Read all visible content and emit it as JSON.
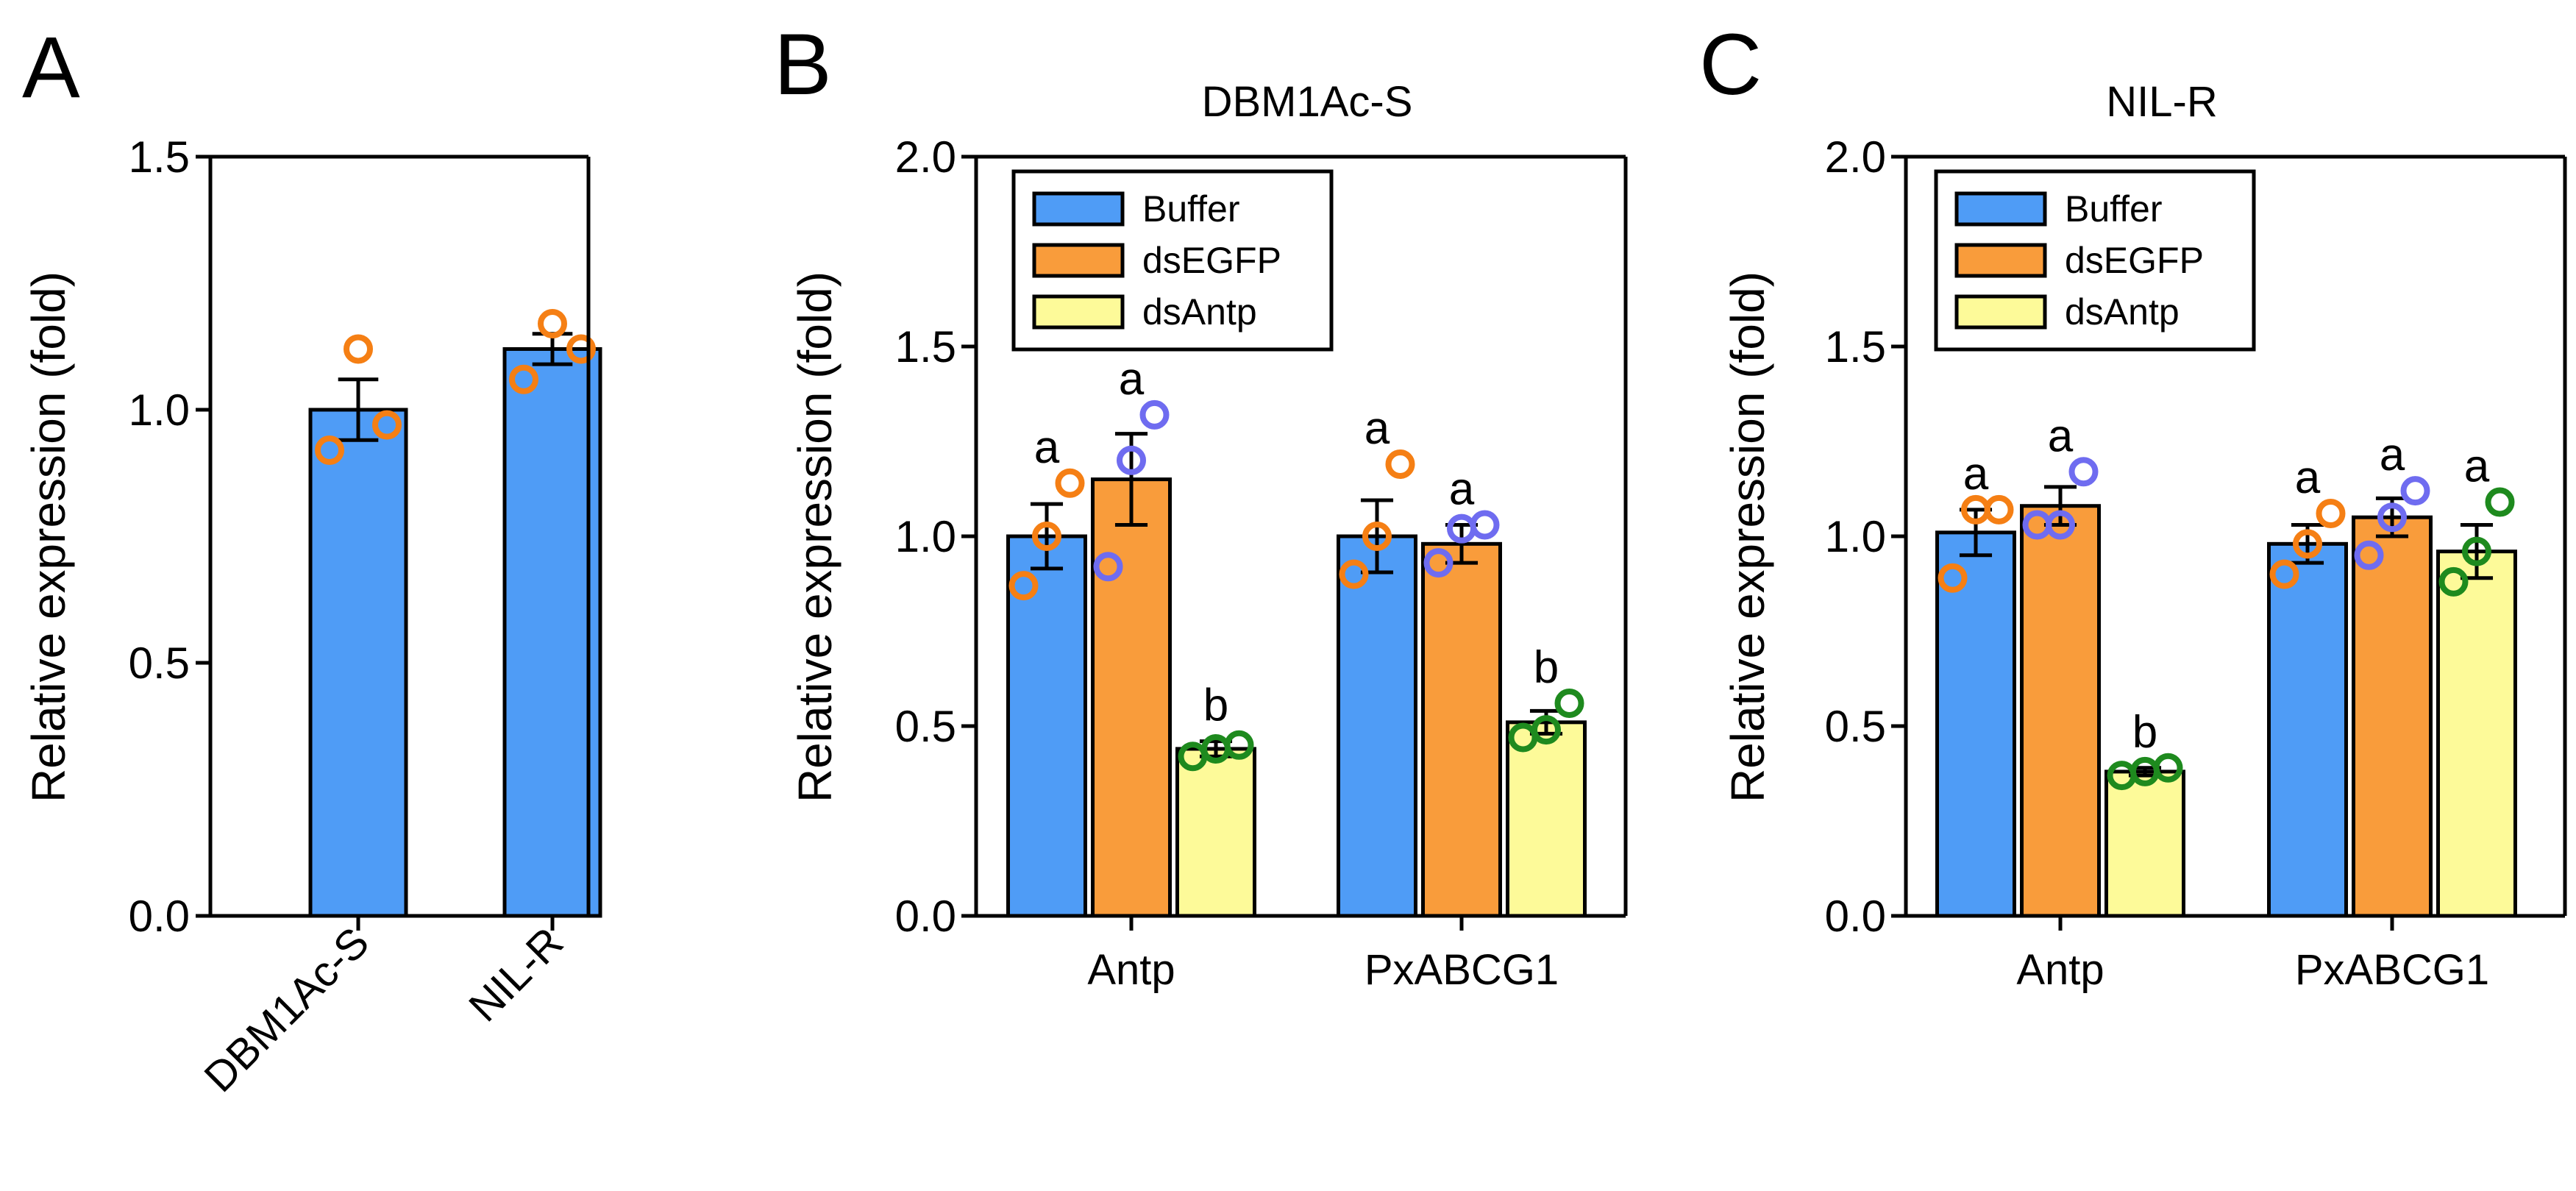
{
  "figure": {
    "colors": {
      "buffer": "#4f9cf6",
      "dsEGFP": "#f99c3b",
      "dsAntp": "#fdfa99",
      "dot_orange": "#f57f14",
      "dot_blue": "#6f6cf0",
      "dot_green": "#1e8a1e",
      "axis": "#000000"
    }
  },
  "chart_data": [
    {
      "id": "A",
      "panel_label": "A",
      "type": "bar",
      "title": "",
      "ylabel": "Relative expression (fold)",
      "ylim": [
        0,
        1.5
      ],
      "yticks": [
        0.0,
        0.5,
        1.0,
        1.5
      ],
      "ytick_labels": [
        "0.0",
        "0.5",
        "1.0",
        "1.5"
      ],
      "categories": [
        "DBM1Ac-S",
        "NIL-R"
      ],
      "series": [
        {
          "name": "",
          "color_key": "buffer",
          "dot_color_key": "dot_orange",
          "values": [
            1.0,
            1.12
          ],
          "sem": [
            0.06,
            0.03
          ],
          "points": [
            [
              0.92,
              1.12,
              0.97
            ],
            [
              1.06,
              1.17,
              1.12
            ]
          ],
          "sig": [
            "",
            ""
          ]
        }
      ]
    },
    {
      "id": "B",
      "panel_label": "B",
      "type": "bar",
      "title": "DBM1Ac-S",
      "ylabel": "Relative expression (fold)",
      "ylim": [
        0,
        2.0
      ],
      "yticks": [
        0.0,
        0.5,
        1.0,
        1.5,
        2.0
      ],
      "ytick_labels": [
        "0.0",
        "0.5",
        "1.0",
        "1.5",
        "2.0"
      ],
      "categories": [
        "Antp",
        "PxABCG1"
      ],
      "legend": [
        "Buffer",
        "dsEGFP",
        "dsAntp"
      ],
      "series": [
        {
          "name": "Buffer",
          "color_key": "buffer",
          "dot_color_key": "dot_orange",
          "values": [
            1.0,
            1.0
          ],
          "sem": [
            0.085,
            0.095
          ],
          "points": [
            [
              0.87,
              1.0,
              1.14
            ],
            [
              0.9,
              1.0,
              1.19
            ]
          ],
          "sig": [
            "a",
            "a"
          ]
        },
        {
          "name": "dsEGFP",
          "color_key": "dsEGFP",
          "dot_color_key": "dot_blue",
          "values": [
            1.15,
            0.98
          ],
          "sem": [
            0.12,
            0.05
          ],
          "points": [
            [
              0.92,
              1.2,
              1.32
            ],
            [
              0.93,
              1.02,
              1.03
            ]
          ],
          "sig": [
            "a",
            "a"
          ]
        },
        {
          "name": "dsAntp",
          "color_key": "dsAntp",
          "dot_color_key": "dot_green",
          "values": [
            0.44,
            0.51
          ],
          "sem": [
            0.02,
            0.03
          ],
          "points": [
            [
              0.42,
              0.44,
              0.45
            ],
            [
              0.47,
              0.49,
              0.56
            ]
          ],
          "sig": [
            "b",
            "b"
          ]
        }
      ]
    },
    {
      "id": "C",
      "panel_label": "C",
      "type": "bar",
      "title": "NIL-R",
      "ylabel": "Relative expression (fold)",
      "ylim": [
        0,
        2.0
      ],
      "yticks": [
        0.0,
        0.5,
        1.0,
        1.5,
        2.0
      ],
      "ytick_labels": [
        "0.0",
        "0.5",
        "1.0",
        "1.5",
        "2.0"
      ],
      "categories": [
        "Antp",
        "PxABCG1"
      ],
      "legend": [
        "Buffer",
        "dsEGFP",
        "dsAntp"
      ],
      "series": [
        {
          "name": "Buffer",
          "color_key": "buffer",
          "dot_color_key": "dot_orange",
          "values": [
            1.01,
            0.98
          ],
          "sem": [
            0.06,
            0.05
          ],
          "points": [
            [
              0.89,
              1.07,
              1.07
            ],
            [
              0.9,
              0.98,
              1.06
            ]
          ],
          "sig": [
            "a",
            "a"
          ]
        },
        {
          "name": "dsEGFP",
          "color_key": "dsEGFP",
          "dot_color_key": "dot_blue",
          "values": [
            1.08,
            1.05
          ],
          "sem": [
            0.05,
            0.05
          ],
          "points": [
            [
              1.03,
              1.03,
              1.17
            ],
            [
              0.95,
              1.05,
              1.12
            ]
          ],
          "sig": [
            "a",
            "a"
          ]
        },
        {
          "name": "dsAntp",
          "color_key": "dsAntp",
          "dot_color_key": "dot_green",
          "values": [
            0.38,
            0.96
          ],
          "sem": [
            0.01,
            0.07
          ],
          "points": [
            [
              0.37,
              0.38,
              0.39
            ],
            [
              0.88,
              0.96,
              1.09
            ]
          ],
          "sig": [
            "b",
            "a"
          ]
        }
      ]
    }
  ]
}
